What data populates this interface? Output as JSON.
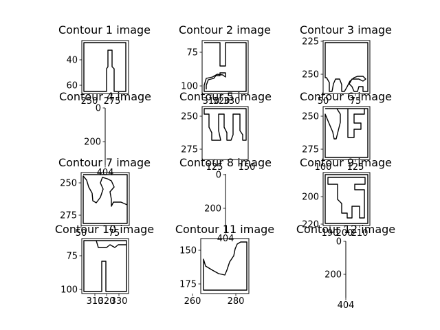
{
  "chart_data": [
    {
      "type": "image",
      "title": "Contour 1 image",
      "x_ticks": [
        "250",
        "275"
      ],
      "y_ticks": [
        "40",
        "60"
      ]
    },
    {
      "type": "image",
      "title": "Contour 2 image",
      "x_ticks": [
        "310",
        "320",
        "330"
      ],
      "y_ticks": [
        "75",
        "100"
      ]
    },
    {
      "type": "image",
      "title": "Contour 3 image",
      "x_ticks": [
        "50",
        "75"
      ],
      "y_ticks": [
        "225",
        "250"
      ]
    },
    {
      "type": "image",
      "title": "Contour 4 image",
      "x_ticks": [
        "404"
      ],
      "y_ticks": [
        "0",
        "200"
      ]
    },
    {
      "type": "image",
      "title": "Contour 5 image",
      "x_ticks": [
        "125",
        "150"
      ],
      "y_ticks": [
        "250",
        "275"
      ]
    },
    {
      "type": "image",
      "title": "Contour 6 image",
      "x_ticks": [
        "100",
        "125"
      ],
      "y_ticks": [
        "250",
        "275"
      ]
    },
    {
      "type": "image",
      "title": "Contour 7 image",
      "x_ticks": [
        "50",
        "75"
      ],
      "y_ticks": [
        "250",
        "275"
      ]
    },
    {
      "type": "image",
      "title": "Contour 8 image",
      "x_ticks": [
        "404"
      ],
      "y_ticks": [
        "0",
        "200"
      ]
    },
    {
      "type": "image",
      "title": "Contour 9 image",
      "x_ticks": [
        "190",
        "200",
        "210"
      ],
      "y_ticks": [
        "200",
        "220"
      ]
    },
    {
      "type": "image",
      "title": "Contour 10 image",
      "x_ticks": [
        "310",
        "320",
        "330"
      ],
      "y_ticks": [
        "75",
        "100"
      ]
    },
    {
      "type": "image",
      "title": "Contour 11 image",
      "x_ticks": [
        "260",
        "280"
      ],
      "y_ticks": [
        "150",
        "175"
      ]
    },
    {
      "type": "image",
      "title": "Contour 12 image",
      "x_ticks": [
        "404"
      ],
      "y_ticks": [
        "0",
        "200"
      ]
    }
  ]
}
